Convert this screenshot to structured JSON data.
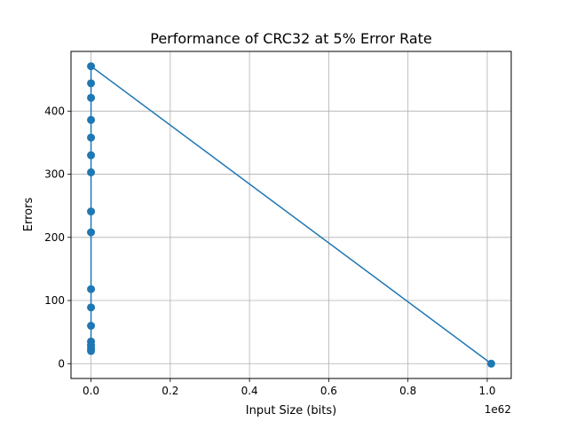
{
  "chart_data": {
    "type": "line",
    "title": "Performance of CRC32 at 5% Error Rate",
    "xlabel": "Input Size (bits)",
    "ylabel": "Errors",
    "x_offset_label": "1e62",
    "x_scale": 1e+62,
    "xlim": [
      -0.0505,
      1.0605
    ],
    "ylim": [
      -23.5,
      494.5
    ],
    "x_ticks": [
      0.0,
      0.2,
      0.4,
      0.6,
      0.8,
      1.0
    ],
    "x_tick_labels": [
      "0.0",
      "0.2",
      "0.4",
      "0.6",
      "0.8",
      "1.0"
    ],
    "y_ticks": [
      0,
      100,
      200,
      300,
      400
    ],
    "y_tick_labels": [
      "0",
      "100",
      "200",
      "300",
      "400"
    ],
    "grid": true,
    "legend": "none",
    "series": [
      {
        "color": "#1f77b4",
        "marker": "circle",
        "x": [
          0,
          0,
          0,
          0,
          0,
          0,
          0,
          0,
          0,
          0,
          0,
          0,
          0,
          0,
          0,
          0,
          1.01
        ],
        "y": [
          20,
          24,
          29,
          35,
          60,
          89,
          118,
          208,
          241,
          303,
          330,
          358,
          386,
          421,
          444,
          471,
          0
        ]
      }
    ]
  }
}
